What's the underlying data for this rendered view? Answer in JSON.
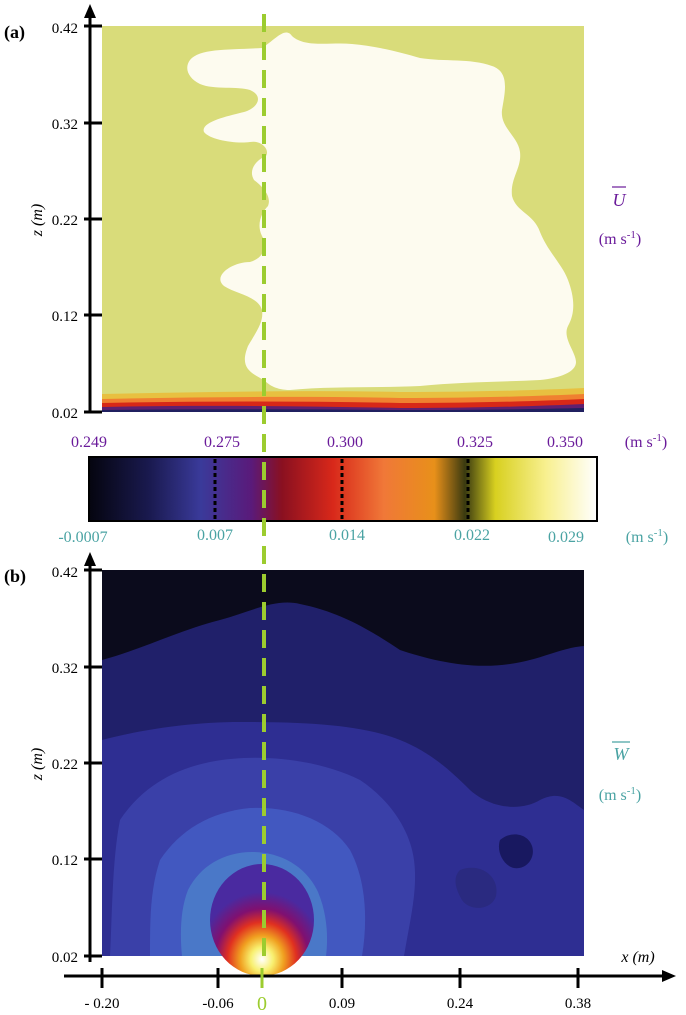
{
  "chart_data": [
    {
      "type": "heatmap",
      "panel_label": "(a)",
      "ylabel": "z (m)",
      "y_ticks": [
        "0.02",
        "0.12",
        "0.22",
        "0.32",
        "0.42"
      ],
      "ylim": [
        0.02,
        0.42
      ],
      "quantity_symbol": "U",
      "quantity_unit": "(m s",
      "quantity_unit_exp": "-1",
      "quantity_unit_close": ")",
      "colorbar_ticks": [
        "0.249",
        "0.275",
        "0.300",
        "0.325",
        "0.350"
      ],
      "colorbar_unit": "(m s",
      "colorbar_unit_exp": "-1",
      "colorbar_unit_close": ")",
      "color_label": "#6a1b9a"
    },
    {
      "type": "heatmap",
      "panel_label": "(b)",
      "ylabel": "z (m)",
      "xlabel": "x (m)",
      "y_ticks": [
        "0.02",
        "0.12",
        "0.22",
        "0.32",
        "0.42"
      ],
      "ylim": [
        0.02,
        0.42
      ],
      "x_ticks": [
        "- 0.20",
        "-0.06",
        "0",
        "0.09",
        "0.24",
        "0.38"
      ],
      "xlim": [
        -0.2,
        0.38
      ],
      "quantity_symbol": "W",
      "quantity_unit": "(m s",
      "quantity_unit_exp": "-1",
      "quantity_unit_close": ")",
      "colorbar_ticks": [
        "-0.0007",
        "0.007",
        "0.014",
        "0.022",
        "0.029"
      ],
      "colorbar_unit": "(m s",
      "colorbar_unit_exp": "-1",
      "colorbar_unit_close": ")",
      "color_label": "#4aa3a3"
    }
  ],
  "colors": {
    "centerline": "#9ccc2f",
    "zero_tick": "#9ccc2f",
    "panel_a_background": "#d9dc7a",
    "panel_a_plume": "#fdfbef",
    "panel_b_background": "#0b0b1c"
  },
  "centerline_x": 0
}
